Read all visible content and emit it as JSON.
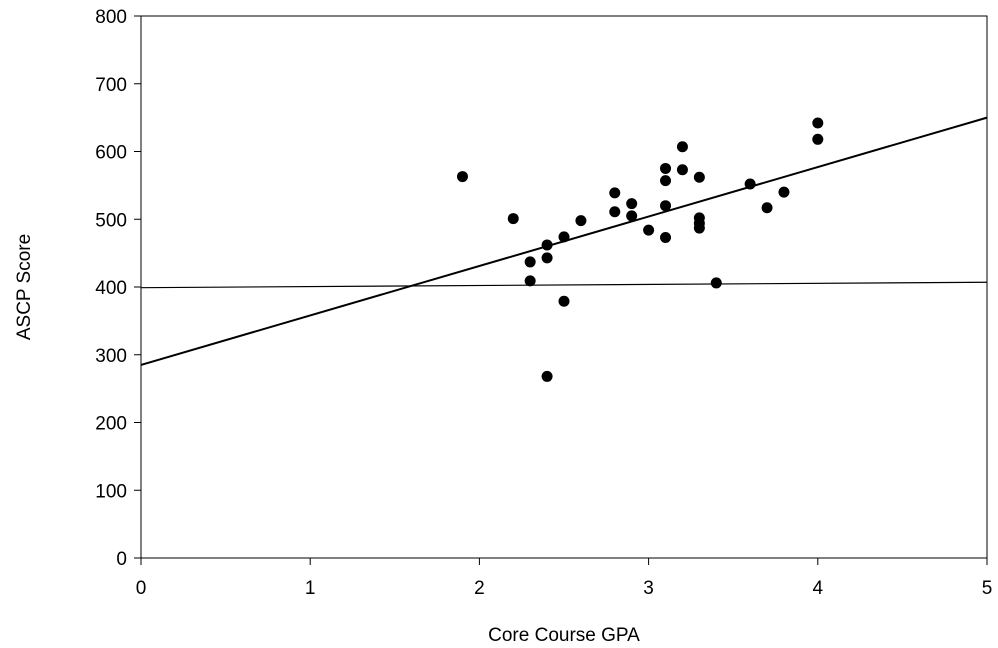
{
  "chart_data": {
    "type": "scatter",
    "title": "",
    "xlabel": "Core Course GPA",
    "ylabel": "ASCP Score",
    "xlim": [
      0,
      5
    ],
    "ylim": [
      0,
      800
    ],
    "xticks": [
      "0",
      "1",
      "2",
      "3",
      "4",
      "5"
    ],
    "yticks": [
      "0",
      "100",
      "200",
      "300",
      "400",
      "500",
      "600",
      "700",
      "800"
    ],
    "grid": false,
    "legend": "none",
    "points": [
      {
        "x": 1.9,
        "y": 563
      },
      {
        "x": 2.2,
        "y": 501
      },
      {
        "x": 2.3,
        "y": 437
      },
      {
        "x": 2.3,
        "y": 409
      },
      {
        "x": 2.4,
        "y": 462
      },
      {
        "x": 2.4,
        "y": 443
      },
      {
        "x": 2.4,
        "y": 268
      },
      {
        "x": 2.5,
        "y": 474
      },
      {
        "x": 2.5,
        "y": 379
      },
      {
        "x": 2.6,
        "y": 498
      },
      {
        "x": 2.8,
        "y": 539
      },
      {
        "x": 2.8,
        "y": 511
      },
      {
        "x": 2.9,
        "y": 523
      },
      {
        "x": 2.9,
        "y": 505
      },
      {
        "x": 3.0,
        "y": 484
      },
      {
        "x": 3.1,
        "y": 575
      },
      {
        "x": 3.1,
        "y": 557
      },
      {
        "x": 3.1,
        "y": 520
      },
      {
        "x": 3.1,
        "y": 473
      },
      {
        "x": 3.2,
        "y": 607
      },
      {
        "x": 3.2,
        "y": 573
      },
      {
        "x": 3.3,
        "y": 562
      },
      {
        "x": 3.3,
        "y": 502
      },
      {
        "x": 3.3,
        "y": 494
      },
      {
        "x": 3.3,
        "y": 487
      },
      {
        "x": 3.4,
        "y": 406
      },
      {
        "x": 3.6,
        "y": 552
      },
      {
        "x": 3.7,
        "y": 517
      },
      {
        "x": 3.8,
        "y": 540
      },
      {
        "x": 4.0,
        "y": 642
      },
      {
        "x": 4.0,
        "y": 618
      }
    ],
    "lines": [
      {
        "x": [
          0,
          5
        ],
        "y": [
          285,
          650
        ]
      },
      {
        "x": [
          0,
          5
        ],
        "y": [
          399,
          407
        ]
      }
    ]
  }
}
